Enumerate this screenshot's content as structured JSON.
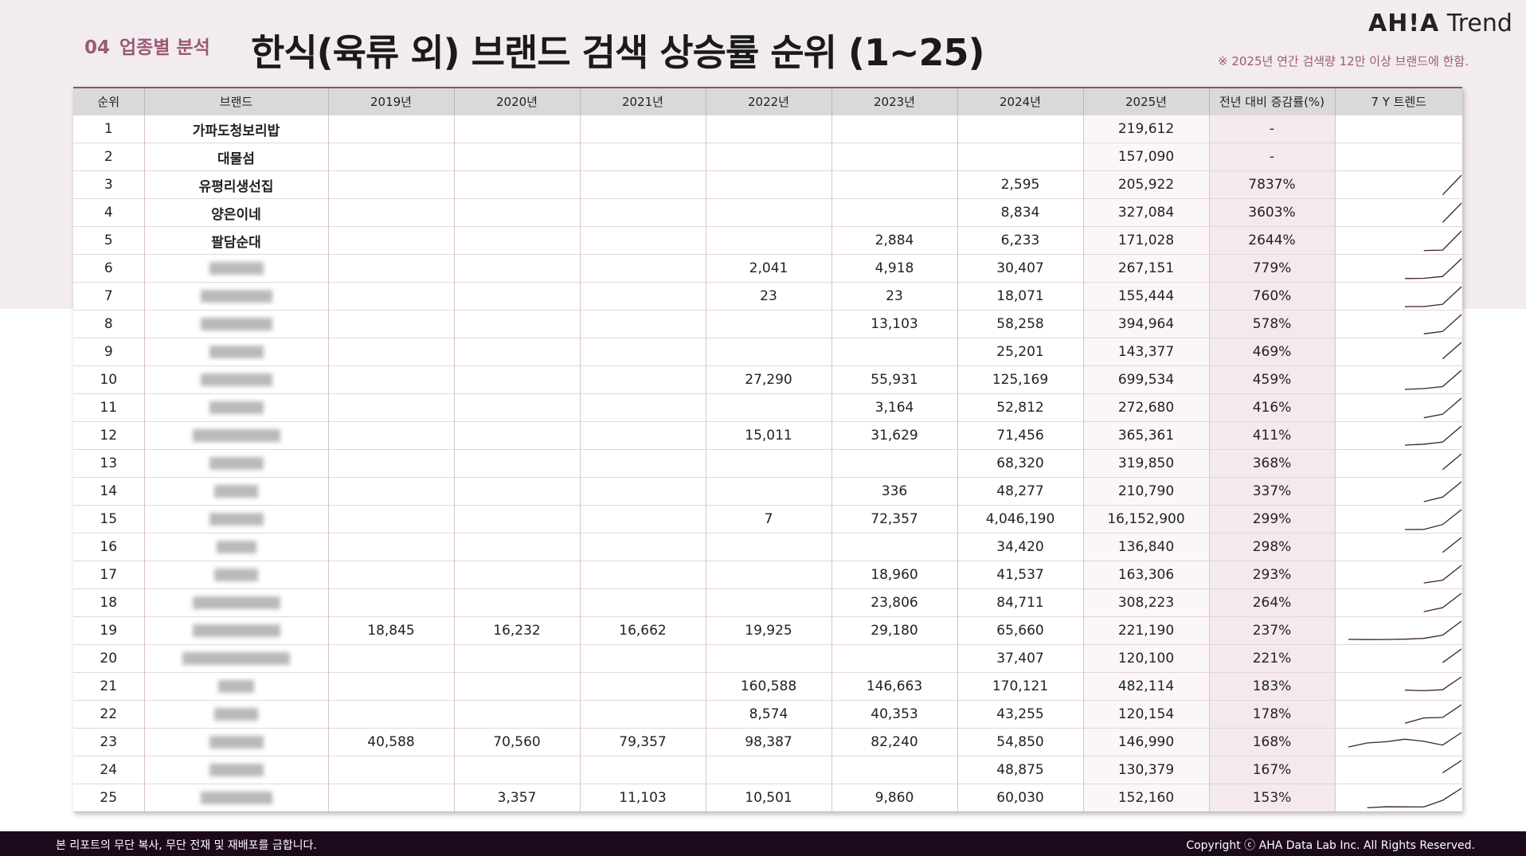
{
  "header": {
    "section_number": "04",
    "section_label": "업종별 분석",
    "title": "한식(육류 외) 브랜드 검색 상승률 순위 (1~25)",
    "logo_bold": "AH!A",
    "logo_text": "Trend",
    "note": "※ 2025년 연간 검색량 12만 이상 브랜드에 한함."
  },
  "table": {
    "columns": [
      "순위",
      "브랜드",
      "2019년",
      "2020년",
      "2021년",
      "2022년",
      "2023년",
      "2024년",
      "2025년",
      "전년 대비 증감률(%)",
      "7 Y 트렌드"
    ],
    "rows": [
      {
        "rank": "1",
        "brand": "가파도청보리밥",
        "v": [
          "",
          "",
          "",
          "",
          "",
          "",
          "219,612"
        ],
        "rate": "-"
      },
      {
        "rank": "2",
        "brand": "대물섬",
        "v": [
          "",
          "",
          "",
          "",
          "",
          "",
          "157,090"
        ],
        "rate": "-"
      },
      {
        "rank": "3",
        "brand": "유평리생선집",
        "v": [
          "",
          "",
          "",
          "",
          "",
          "2,595",
          "205,922"
        ],
        "rate": "7837%"
      },
      {
        "rank": "4",
        "brand": "양은이네",
        "v": [
          "",
          "",
          "",
          "",
          "",
          "8,834",
          "327,084"
        ],
        "rate": "3603%"
      },
      {
        "rank": "5",
        "brand": "팔담순대",
        "v": [
          "",
          "",
          "",
          "",
          "2,884",
          "6,233",
          "171,028"
        ],
        "rate": "2644%"
      },
      {
        "rank": "6",
        "brand": "",
        "v": [
          "",
          "",
          "",
          "2,041",
          "4,918",
          "30,407",
          "267,151"
        ],
        "rate": "779%"
      },
      {
        "rank": "7",
        "brand": "",
        "v": [
          "",
          "",
          "",
          "23",
          "23",
          "18,071",
          "155,444"
        ],
        "rate": "760%"
      },
      {
        "rank": "8",
        "brand": "",
        "v": [
          "",
          "",
          "",
          "",
          "13,103",
          "58,258",
          "394,964"
        ],
        "rate": "578%"
      },
      {
        "rank": "9",
        "brand": "",
        "v": [
          "",
          "",
          "",
          "",
          "",
          "25,201",
          "143,377"
        ],
        "rate": "469%"
      },
      {
        "rank": "10",
        "brand": "",
        "v": [
          "",
          "",
          "",
          "27,290",
          "55,931",
          "125,169",
          "699,534"
        ],
        "rate": "459%"
      },
      {
        "rank": "11",
        "brand": "",
        "v": [
          "",
          "",
          "",
          "",
          "3,164",
          "52,812",
          "272,680"
        ],
        "rate": "416%"
      },
      {
        "rank": "12",
        "brand": "",
        "v": [
          "",
          "",
          "",
          "15,011",
          "31,629",
          "71,456",
          "365,361"
        ],
        "rate": "411%"
      },
      {
        "rank": "13",
        "brand": "",
        "v": [
          "",
          "",
          "",
          "",
          "",
          "68,320",
          "319,850"
        ],
        "rate": "368%"
      },
      {
        "rank": "14",
        "brand": "",
        "v": [
          "",
          "",
          "",
          "",
          "336",
          "48,277",
          "210,790"
        ],
        "rate": "337%"
      },
      {
        "rank": "15",
        "brand": "",
        "v": [
          "",
          "",
          "",
          "7",
          "72,357",
          "4,046,190",
          "16,152,900"
        ],
        "rate": "299%"
      },
      {
        "rank": "16",
        "brand": "",
        "v": [
          "",
          "",
          "",
          "",
          "",
          "34,420",
          "136,840"
        ],
        "rate": "298%"
      },
      {
        "rank": "17",
        "brand": "",
        "v": [
          "",
          "",
          "",
          "",
          "18,960",
          "41,537",
          "163,306"
        ],
        "rate": "293%"
      },
      {
        "rank": "18",
        "brand": "",
        "v": [
          "",
          "",
          "",
          "",
          "23,806",
          "84,711",
          "308,223"
        ],
        "rate": "264%"
      },
      {
        "rank": "19",
        "brand": "",
        "v": [
          "18,845",
          "16,232",
          "16,662",
          "19,925",
          "29,180",
          "65,660",
          "221,190"
        ],
        "rate": "237%"
      },
      {
        "rank": "20",
        "brand": "",
        "v": [
          "",
          "",
          "",
          "",
          "",
          "37,407",
          "120,100"
        ],
        "rate": "221%"
      },
      {
        "rank": "21",
        "brand": "",
        "v": [
          "",
          "",
          "",
          "160,588",
          "146,663",
          "170,121",
          "482,114"
        ],
        "rate": "183%"
      },
      {
        "rank": "22",
        "brand": "",
        "v": [
          "",
          "",
          "",
          "8,574",
          "40,353",
          "43,255",
          "120,154"
        ],
        "rate": "178%"
      },
      {
        "rank": "23",
        "brand": "",
        "v": [
          "40,588",
          "70,560",
          "79,357",
          "98,387",
          "82,240",
          "54,850",
          "146,990"
        ],
        "rate": "168%"
      },
      {
        "rank": "24",
        "brand": "",
        "v": [
          "",
          "",
          "",
          "",
          "",
          "48,875",
          "130,379"
        ],
        "rate": "167%"
      },
      {
        "rank": "25",
        "brand": "",
        "v": [
          "",
          "3,357",
          "11,103",
          "10,501",
          "9,860",
          "60,030",
          "152,160"
        ],
        "rate": "153%"
      }
    ]
  },
  "footer": {
    "left": "본 리포트의 무단 복사, 무단 전재 및 재배포를 금합니다.",
    "right": "Copyright ⓒ AHA Data Lab Inc. All Rights Reserved."
  }
}
